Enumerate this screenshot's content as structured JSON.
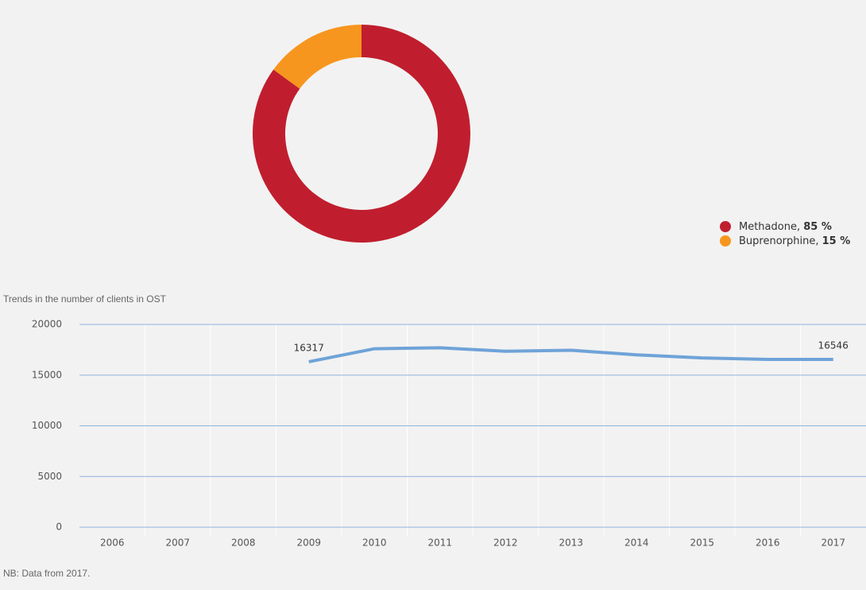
{
  "chart_data": [
    {
      "type": "pie",
      "donut": true,
      "series": [
        {
          "name": "Methadone",
          "color": "#c01e2e",
          "values": [
            85
          ],
          "value_labels": [
            "85 %"
          ]
        },
        {
          "name": "Buprenorphine",
          "color": "#f7961e",
          "values": [
            15
          ],
          "value_labels": [
            "15 %"
          ]
        }
      ]
    },
    {
      "type": "line",
      "title": "Trends in the number of clients in OST",
      "categories": [
        "2006",
        "2007",
        "2008",
        "2009",
        "2010",
        "2011",
        "2012",
        "2013",
        "2014",
        "2015",
        "2016",
        "2017"
      ],
      "series": [
        {
          "name": "Clients in OST",
          "color": "#6fa3d8",
          "values": [
            null,
            null,
            null,
            16317,
            17600,
            17700,
            17350,
            17450,
            17000,
            16700,
            16550,
            16546
          ]
        }
      ],
      "labeled_points": [
        3,
        11
      ],
      "ylim": [
        0,
        20000
      ],
      "yticks": [
        0,
        5000,
        10000,
        15000,
        20000
      ],
      "grid": true,
      "note": "NB: Data from 2017."
    }
  ]
}
